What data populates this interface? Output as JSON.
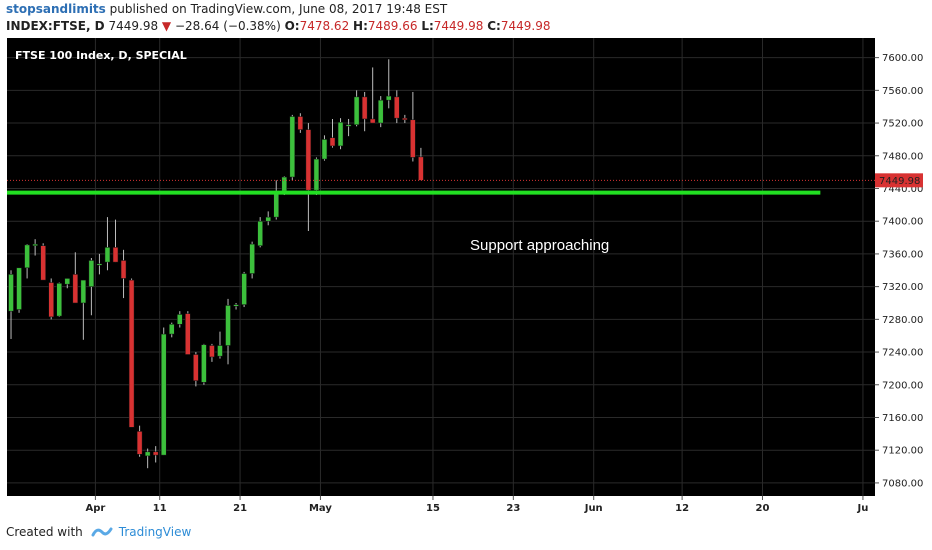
{
  "header": {
    "author": "stopsandlimits",
    "published_text": "published on TradingView.com, June 08, 2017 19:48 EST"
  },
  "quote": {
    "symbol": "INDEX:FTSE, D",
    "last": "7449.98",
    "change": "−28.64 (−0.38%)",
    "open_label": "O:",
    "open": "7478.62",
    "high_label": "H:",
    "high": "7489.66",
    "low_label": "L:",
    "low": "7449.98",
    "close_label": "C:",
    "close": "7449.98"
  },
  "footer": {
    "created_with": "Created with",
    "brand": "TradingView"
  },
  "chart_data": {
    "type": "candlestick",
    "title": "FTSE 100 Index, D, SPECIAL",
    "annotation": "Support approaching",
    "price_label": "7449.98",
    "support_level": 7435,
    "last_price": 7449.98,
    "ylim": [
      7064,
      7624
    ],
    "y_ticks": [
      7080,
      7120,
      7160,
      7200,
      7240,
      7280,
      7320,
      7360,
      7400,
      7440,
      7480,
      7520,
      7560,
      7600
    ],
    "y_tick_labels": [
      "7080.00",
      "7120.00",
      "7160.00",
      "7200.00",
      "7240.00",
      "7280.00",
      "7320.00",
      "7360.00",
      "7400.00",
      "7440.00",
      "7480.00",
      "7520.00",
      "7560.00",
      "7600.00"
    ],
    "x_tick_labels": [
      "Apr",
      "11",
      "21",
      "May",
      "15",
      "23",
      "Jun",
      "12",
      "20",
      "Ju"
    ],
    "x_tick_positions": [
      10.5,
      18.5,
      28.5,
      38.5,
      52.5,
      62.5,
      72.5,
      83.5,
      93.5,
      106
    ],
    "x_span": [
      -0.5,
      107.5
    ],
    "colors": {
      "up": "#3cc03c",
      "down": "#d83232",
      "support": "#22e022",
      "background": "#000000",
      "grid": "#2a2a2a"
    },
    "candles": [
      {
        "o": 7290,
        "h": 7340,
        "l": 7256,
        "c": 7335
      },
      {
        "o": 7292,
        "h": 7342,
        "l": 7288,
        "c": 7343
      },
      {
        "o": 7343,
        "h": 7372,
        "l": 7330,
        "c": 7371
      },
      {
        "o": 7370,
        "h": 7378,
        "l": 7358,
        "c": 7372
      },
      {
        "o": 7370,
        "h": 7373,
        "l": 7330,
        "c": 7328
      },
      {
        "o": 7325,
        "h": 7330,
        "l": 7280,
        "c": 7283
      },
      {
        "o": 7284,
        "h": 7325,
        "l": 7283,
        "c": 7324
      },
      {
        "o": 7323,
        "h": 7330,
        "l": 7318,
        "c": 7330
      },
      {
        "o": 7335,
        "h": 7362,
        "l": 7300,
        "c": 7300
      },
      {
        "o": 7300,
        "h": 7325,
        "l": 7255,
        "c": 7328
      },
      {
        "o": 7320,
        "h": 7355,
        "l": 7285,
        "c": 7352
      },
      {
        "o": 7347,
        "h": 7360,
        "l": 7335,
        "c": 7348
      },
      {
        "o": 7350,
        "h": 7405,
        "l": 7340,
        "c": 7368
      },
      {
        "o": 7368,
        "h": 7402,
        "l": 7350,
        "c": 7350
      },
      {
        "o": 7352,
        "h": 7365,
        "l": 7306,
        "c": 7330
      },
      {
        "o": 7328,
        "h": 7330,
        "l": 7150,
        "c": 7148
      },
      {
        "o": 7143,
        "h": 7150,
        "l": 7112,
        "c": 7115
      },
      {
        "o": 7113,
        "h": 7122,
        "l": 7098,
        "c": 7118
      },
      {
        "o": 7118,
        "h": 7125,
        "l": 7105,
        "c": 7114
      },
      {
        "o": 7114,
        "h": 7270,
        "l": 7114,
        "c": 7262
      },
      {
        "o": 7262,
        "h": 7276,
        "l": 7258,
        "c": 7274
      },
      {
        "o": 7274,
        "h": 7290,
        "l": 7270,
        "c": 7286
      },
      {
        "o": 7287,
        "h": 7290,
        "l": 7238,
        "c": 7237
      },
      {
        "o": 7237,
        "h": 7240,
        "l": 7198,
        "c": 7205
      },
      {
        "o": 7203,
        "h": 7250,
        "l": 7200,
        "c": 7249
      },
      {
        "o": 7248,
        "h": 7250,
        "l": 7228,
        "c": 7234
      },
      {
        "o": 7235,
        "h": 7265,
        "l": 7232,
        "c": 7248
      },
      {
        "o": 7248,
        "h": 7305,
        "l": 7225,
        "c": 7297
      },
      {
        "o": 7296,
        "h": 7300,
        "l": 7292,
        "c": 7298
      },
      {
        "o": 7298,
        "h": 7338,
        "l": 7295,
        "c": 7336
      },
      {
        "o": 7336,
        "h": 7375,
        "l": 7330,
        "c": 7372
      },
      {
        "o": 7370,
        "h": 7405,
        "l": 7368,
        "c": 7400
      },
      {
        "o": 7400,
        "h": 7412,
        "l": 7395,
        "c": 7405
      },
      {
        "o": 7405,
        "h": 7450,
        "l": 7402,
        "c": 7437
      },
      {
        "o": 7437,
        "h": 7455,
        "l": 7432,
        "c": 7454
      },
      {
        "o": 7454,
        "h": 7530,
        "l": 7450,
        "c": 7528
      },
      {
        "o": 7528,
        "h": 7532,
        "l": 7508,
        "c": 7512
      },
      {
        "o": 7512,
        "h": 7520,
        "l": 7388,
        "c": 7438
      },
      {
        "o": 7438,
        "h": 7478,
        "l": 7432,
        "c": 7476
      },
      {
        "o": 7476,
        "h": 7505,
        "l": 7474,
        "c": 7500
      },
      {
        "o": 7502,
        "h": 7525,
        "l": 7490,
        "c": 7492
      },
      {
        "o": 7492,
        "h": 7526,
        "l": 7488,
        "c": 7521
      },
      {
        "o": 7518,
        "h": 7525,
        "l": 7504,
        "c": 7518
      },
      {
        "o": 7518,
        "h": 7560,
        "l": 7516,
        "c": 7552
      },
      {
        "o": 7552,
        "h": 7558,
        "l": 7510,
        "c": 7525
      },
      {
        "o": 7525,
        "h": 7588,
        "l": 7520,
        "c": 7520
      },
      {
        "o": 7520,
        "h": 7553,
        "l": 7515,
        "c": 7548
      },
      {
        "o": 7548,
        "h": 7598,
        "l": 7538,
        "c": 7553
      },
      {
        "o": 7552,
        "h": 7560,
        "l": 7520,
        "c": 7526
      },
      {
        "o": 7526,
        "h": 7530,
        "l": 7520,
        "c": 7524
      },
      {
        "o": 7524,
        "h": 7558,
        "l": 7473,
        "c": 7478
      },
      {
        "o": 7478.62,
        "h": 7489.66,
        "l": 7449.98,
        "c": 7449.98
      }
    ]
  }
}
